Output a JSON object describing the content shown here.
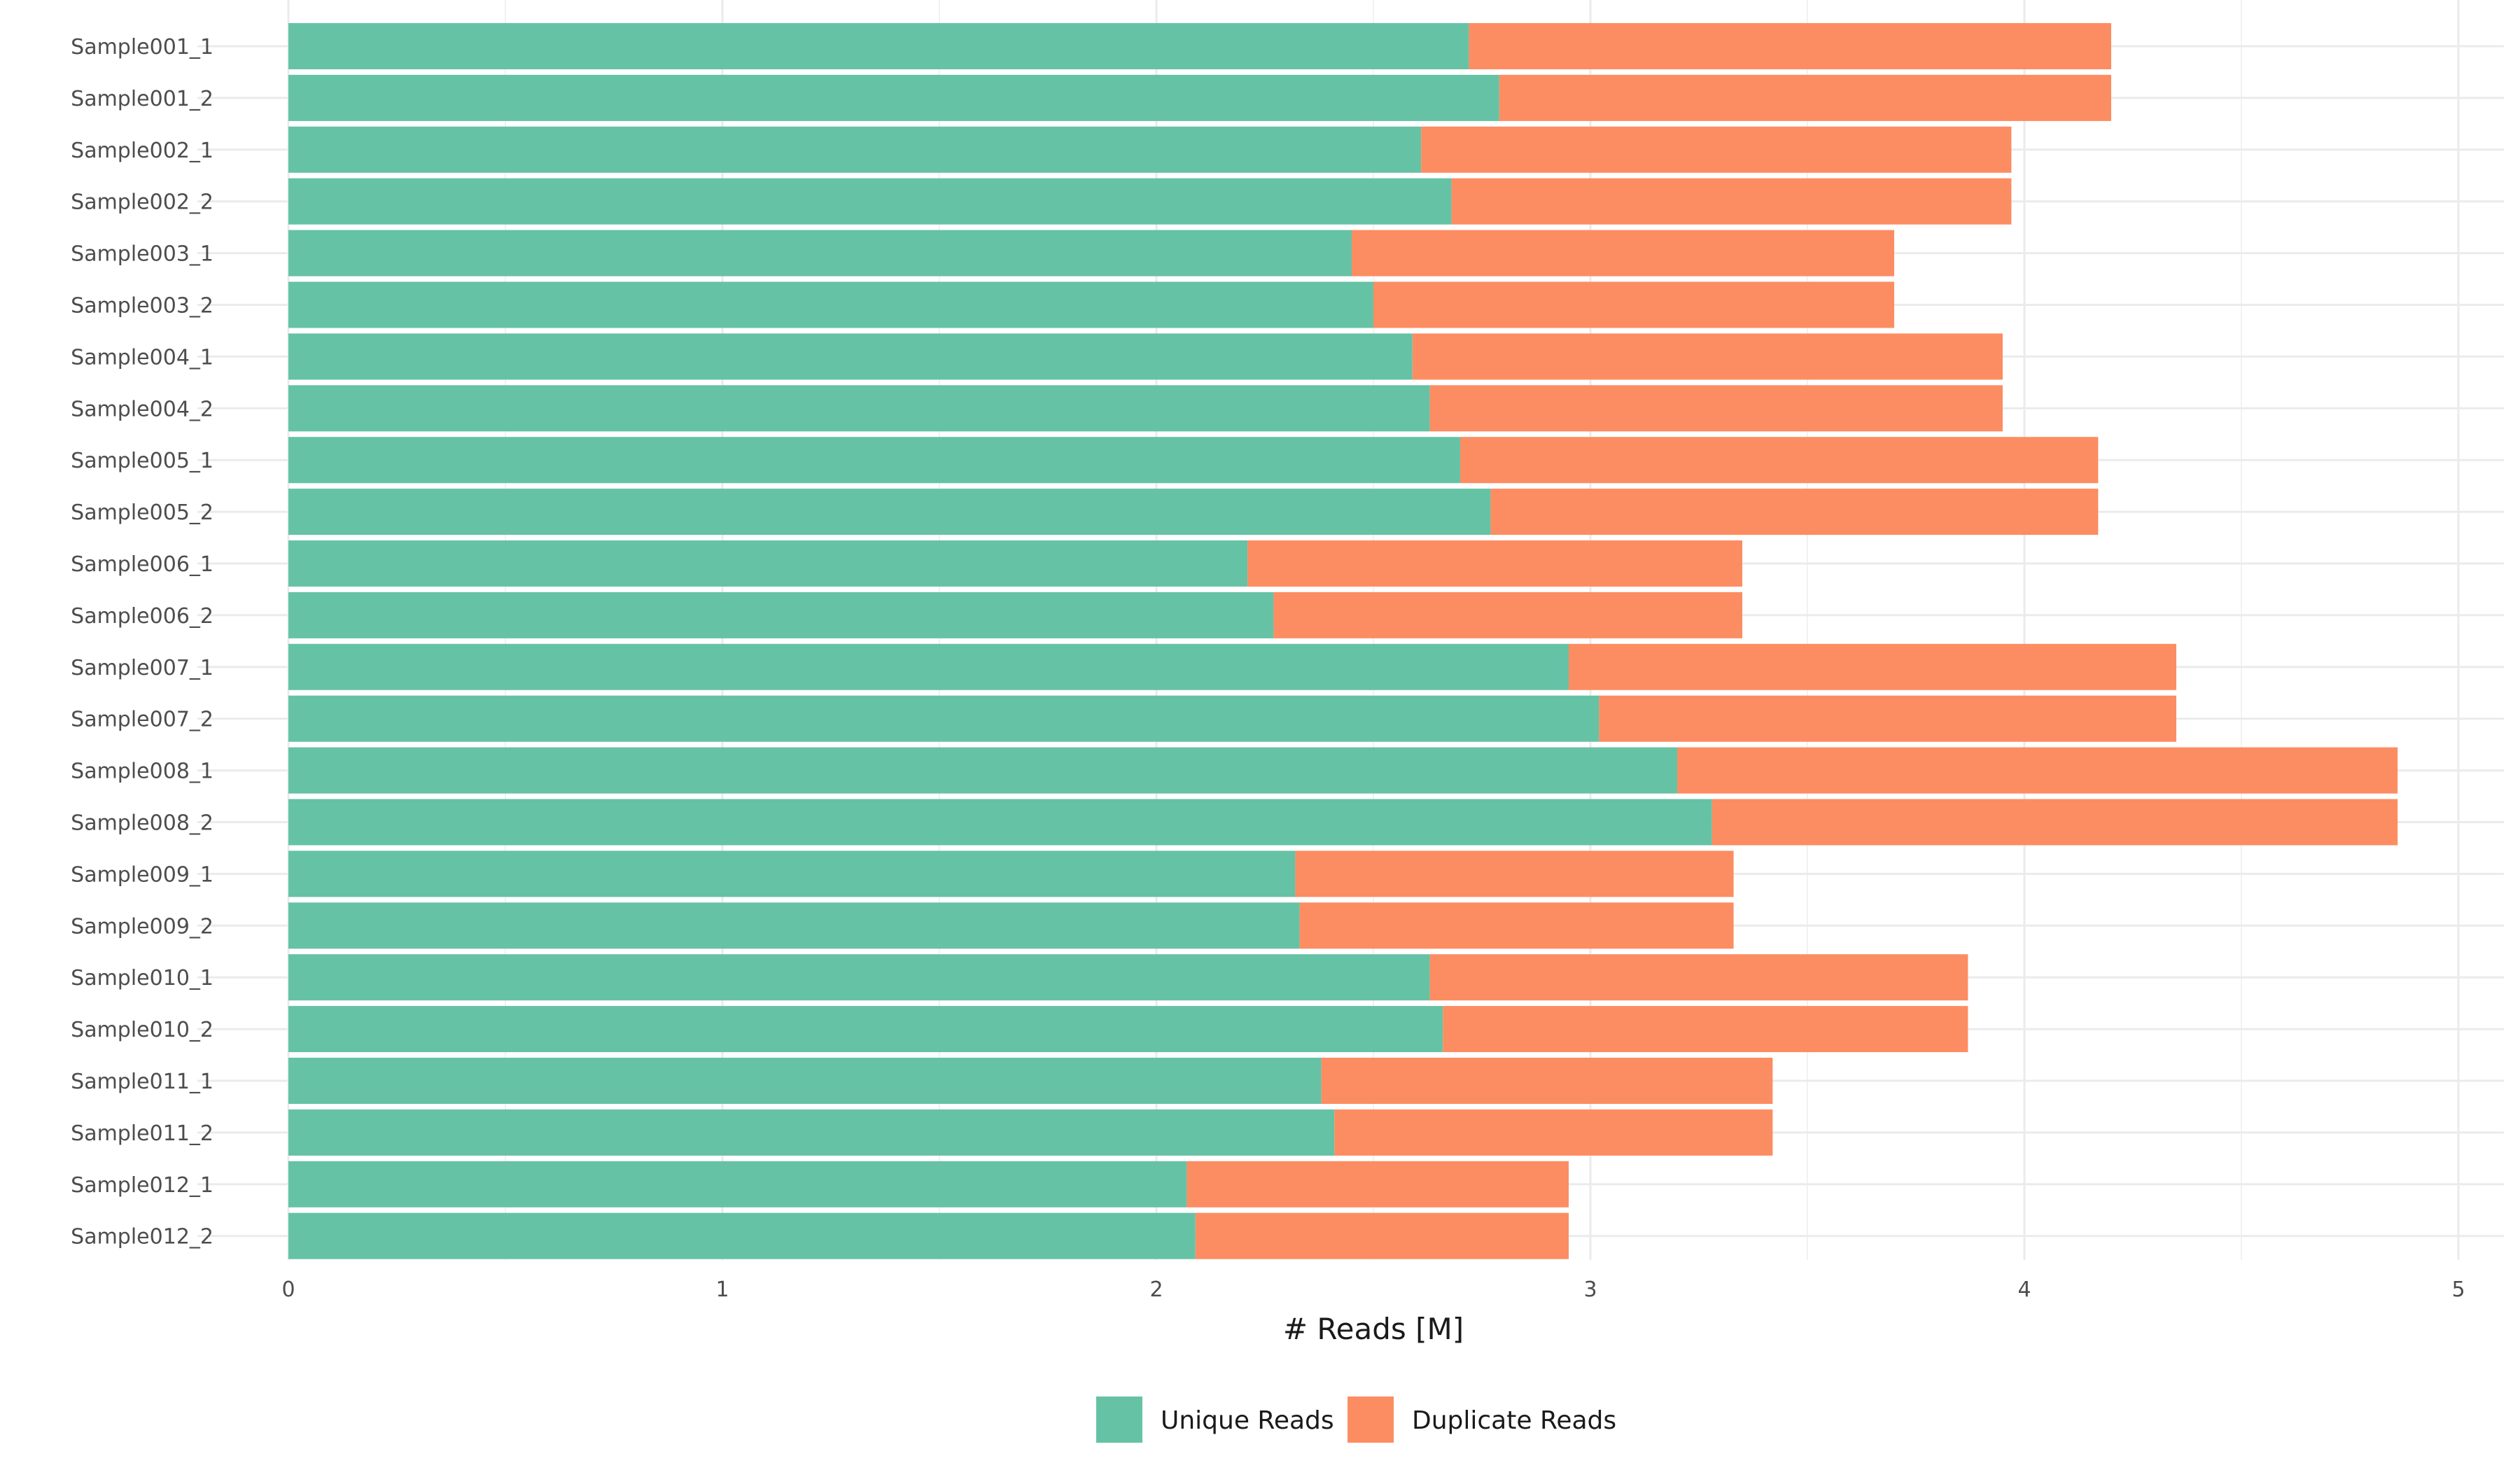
{
  "chart_data": {
    "type": "bar",
    "orientation": "horizontal",
    "stacked": true,
    "categories": [
      "Sample001_1",
      "Sample001_2",
      "Sample002_1",
      "Sample002_2",
      "Sample003_1",
      "Sample003_2",
      "Sample004_1",
      "Sample004_2",
      "Sample005_1",
      "Sample005_2",
      "Sample006_1",
      "Sample006_2",
      "Sample007_1",
      "Sample007_2",
      "Sample008_1",
      "Sample008_2",
      "Sample009_1",
      "Sample009_2",
      "Sample010_1",
      "Sample010_2",
      "Sample011_1",
      "Sample011_2",
      "Sample012_1",
      "Sample012_2"
    ],
    "series": [
      {
        "name": "Unique Reads",
        "color": "#66c2a5",
        "values": [
          2.72,
          2.79,
          2.61,
          2.68,
          2.45,
          2.5,
          2.59,
          2.63,
          2.7,
          2.77,
          2.21,
          2.27,
          2.95,
          3.02,
          3.2,
          3.28,
          2.32,
          2.33,
          2.63,
          2.66,
          2.38,
          2.41,
          2.07,
          2.09
        ]
      },
      {
        "name": "Duplicate Reads",
        "color": "#fc8d62",
        "values": [
          1.48,
          1.41,
          1.36,
          1.29,
          1.25,
          1.2,
          1.36,
          1.32,
          1.47,
          1.4,
          1.14,
          1.08,
          1.4,
          1.33,
          1.66,
          1.58,
          1.01,
          1.0,
          1.24,
          1.21,
          1.04,
          1.01,
          0.88,
          0.86
        ]
      }
    ],
    "xlabel": "# Reads [M]",
    "ylabel": "",
    "xlim": [
      0,
      5
    ],
    "xticks": [
      "0",
      "1",
      "2",
      "3",
      "4",
      "5"
    ],
    "grid": true,
    "legend_position": "bottom"
  }
}
